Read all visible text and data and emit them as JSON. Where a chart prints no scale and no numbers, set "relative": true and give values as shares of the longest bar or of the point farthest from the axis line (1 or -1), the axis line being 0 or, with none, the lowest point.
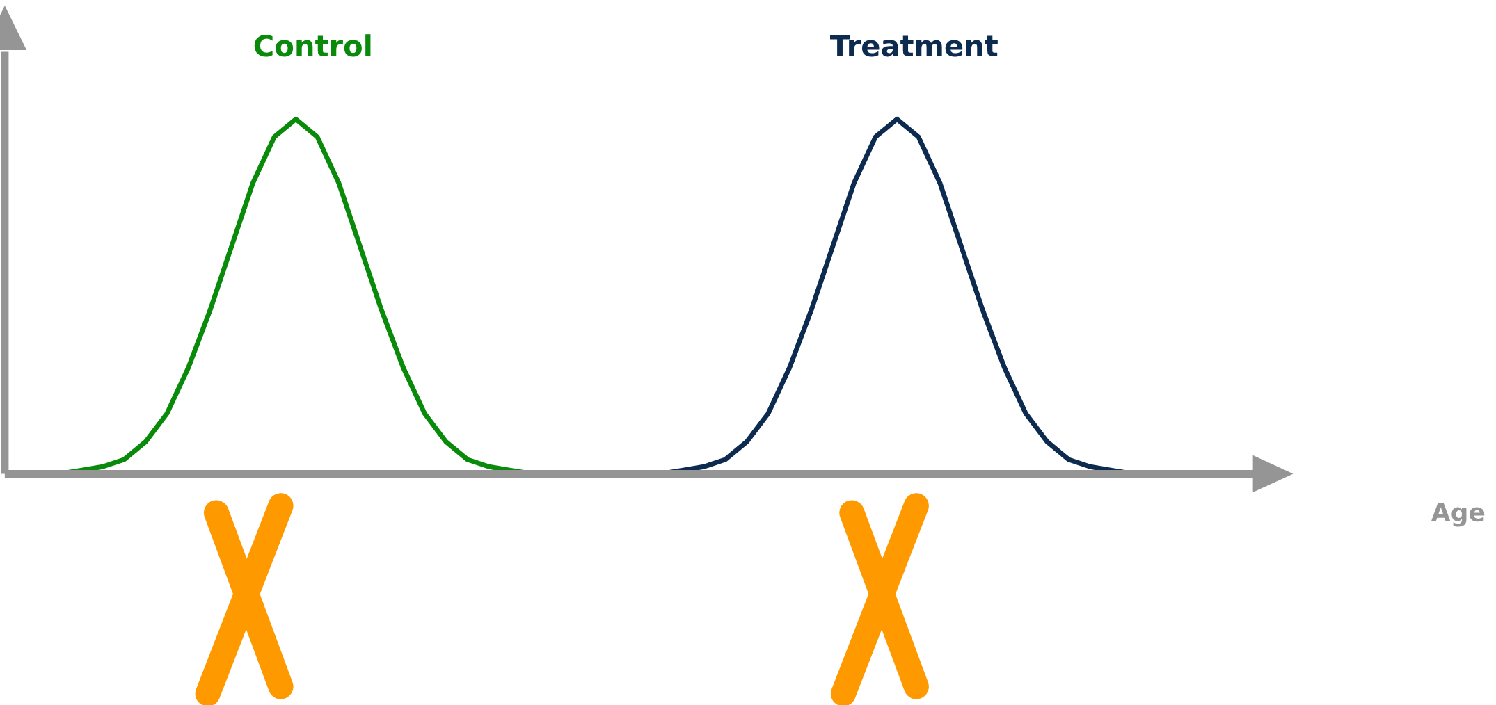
{
  "chart_data": {
    "type": "line",
    "relative": true,
    "annotations": [
      "Age"
    ],
    "categories": [
      null,
      null,
      null,
      null,
      null,
      null,
      null,
      null,
      null,
      null,
      null,
      null,
      null,
      null,
      null,
      null,
      null,
      null,
      null,
      null,
      null,
      null,
      null,
      null,
      null,
      null,
      null,
      null,
      null,
      null,
      null,
      null,
      null,
      null,
      null,
      null,
      null,
      null,
      null,
      null,
      null,
      null,
      null,
      null,
      null,
      null,
      null,
      null,
      null,
      null,
      null,
      null,
      null,
      null,
      null,
      null,
      null,
      null
    ],
    "series": [
      {
        "name": "Control",
        "color": "#0a8a0a",
        "values": [
          0,
          0,
          0,
          0.01,
          0.02,
          0.04,
          0.09,
          0.17,
          0.3,
          0.46,
          0.64,
          0.82,
          0.95,
          1,
          0.95,
          0.82,
          0.64,
          0.46,
          0.3,
          0.17,
          0.09,
          0.04,
          0.02,
          0.01,
          0,
          0,
          0,
          null,
          null,
          null,
          null,
          null,
          null,
          null,
          null,
          null,
          null,
          null,
          null,
          null,
          null,
          null,
          null,
          null,
          null,
          null,
          null,
          null,
          null,
          null,
          null,
          null,
          null,
          null,
          null,
          null,
          null,
          null
        ]
      },
      {
        "name": "Treatment",
        "color": "#0d2a4f",
        "values": [
          null,
          null,
          null,
          null,
          null,
          null,
          null,
          null,
          null,
          null,
          null,
          null,
          null,
          null,
          null,
          null,
          null,
          null,
          null,
          null,
          null,
          null,
          null,
          null,
          null,
          null,
          null,
          null,
          0,
          0,
          0,
          0.01,
          0.02,
          0.04,
          0.09,
          0.17,
          0.3,
          0.46,
          0.64,
          0.82,
          0.95,
          1,
          0.95,
          0.82,
          0.64,
          0.46,
          0.3,
          0.17,
          0.09,
          0.04,
          0.02,
          0.01,
          0,
          0,
          0,
          null,
          null,
          null
        ]
      }
    ]
  }
}
